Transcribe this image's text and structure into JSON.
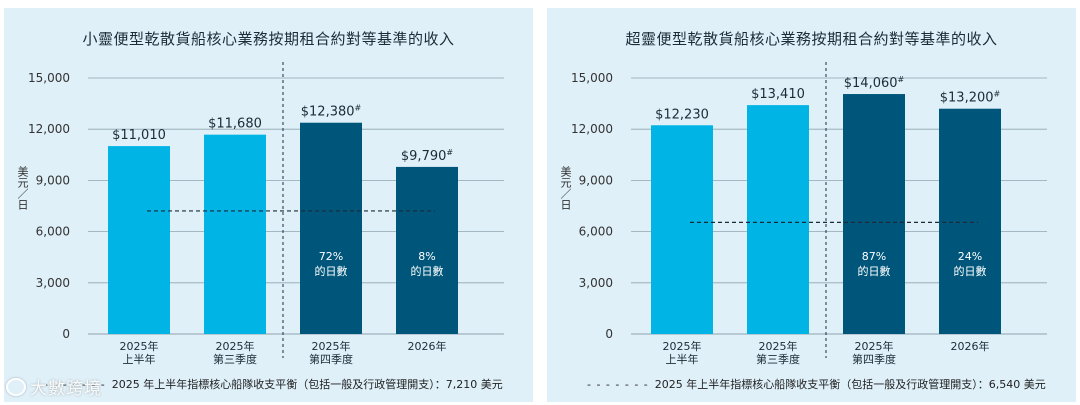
{
  "chart_data": [
    {
      "type": "bar",
      "title": "小靈便型乾散貨船核心業務按期租合約對等基準的收入",
      "ylabel": "美元／日",
      "ylim": [
        0,
        15000
      ],
      "yticks": [
        0,
        3000,
        6000,
        9000,
        12000,
        15000
      ],
      "ytick_labels": [
        "0",
        "3,000",
        "6,000",
        "9,000",
        "12,000",
        "15,000"
      ],
      "categories": [
        [
          "2025年",
          "上半年"
        ],
        [
          "2025年",
          "第三季度"
        ],
        [
          "2025年",
          "第四季度"
        ],
        [
          "2026年"
        ]
      ],
      "values": [
        11010,
        11680,
        12380,
        9790
      ],
      "value_labels": [
        "$11,010",
        "$11,680",
        "$12,380",
        "$9,790"
      ],
      "value_marks": [
        "",
        "",
        "#",
        "#"
      ],
      "bar_colors": [
        "#00b4e6",
        "#00b4e6",
        "#00567a",
        "#00567a"
      ],
      "inner_labels": [
        null,
        null,
        [
          "72%",
          "的日數"
        ],
        [
          "8%",
          "的日數"
        ]
      ],
      "breakeven": 7210,
      "divider_after": 1,
      "footnote": "2025 年上半年指標核心船隊收支平衡（包括一般及行政管理開支）：7,210 美元"
    },
    {
      "type": "bar",
      "title": "超靈便型乾散貨船核心業務按期租合約對等基準的收入",
      "ylabel": "美元／日",
      "ylim": [
        0,
        15000
      ],
      "yticks": [
        0,
        3000,
        6000,
        9000,
        12000,
        15000
      ],
      "ytick_labels": [
        "0",
        "3,000",
        "6,000",
        "9,000",
        "12,000",
        "15,000"
      ],
      "categories": [
        [
          "2025年",
          "上半年"
        ],
        [
          "2025年",
          "第三季度"
        ],
        [
          "2025年",
          "第四季度"
        ],
        [
          "2026年"
        ]
      ],
      "values": [
        12230,
        13410,
        14060,
        13200
      ],
      "value_labels": [
        "$12,230",
        "$13,410",
        "$14,060",
        "$13,200"
      ],
      "value_marks": [
        "",
        "",
        "#",
        "#"
      ],
      "bar_colors": [
        "#00b4e6",
        "#00b4e6",
        "#00567a",
        "#00567a"
      ],
      "inner_labels": [
        null,
        null,
        [
          "87%",
          "的日數"
        ],
        [
          "24%",
          "的日數"
        ]
      ],
      "breakeven": 6540,
      "divider_after": 1,
      "footnote": "2025 年上半年指標核心船隊收支平衡（包括一般及行政管理開支）：6,540 美元"
    }
  ],
  "colors": {
    "panel_bg": "#dff0f9",
    "light_bar": "#00b4e6",
    "dark_bar": "#00567a",
    "grid": "#8fa5b0"
  },
  "watermark": "大數跨境",
  "watermark_icon": "camera-icon"
}
